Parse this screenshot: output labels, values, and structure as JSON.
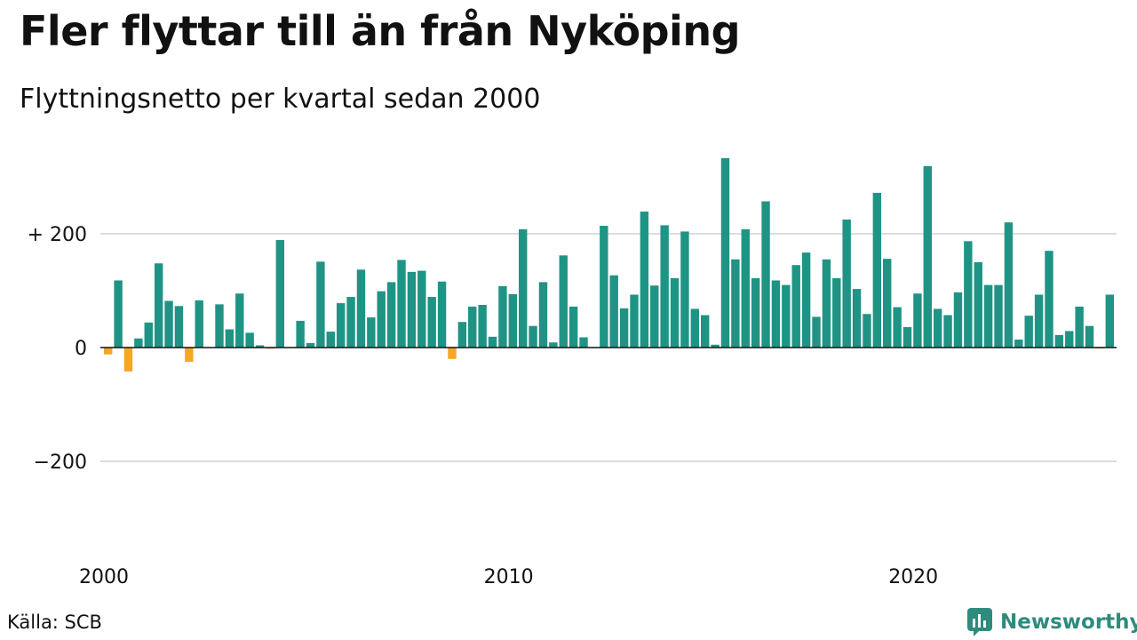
{
  "title": "Fler flyttar till än från Nyköping",
  "subtitle": "Flyttningsnetto per kvartal sedan 2000",
  "source": "Källa: SCB",
  "brand": "Newsworthy",
  "colors": {
    "positive": "#1f9485",
    "negative": "#f5a623",
    "grid": "#dddddd",
    "baseline": "#111111",
    "brand": "#2e8b7d"
  },
  "chart_data": {
    "type": "bar",
    "x_start_year": 2000,
    "periods_per_year": 4,
    "ylim": [
      -300,
      330
    ],
    "y_ticks": [
      {
        "value": 200,
        "label": "+ 200"
      },
      {
        "value": 0,
        "label": "0"
      },
      {
        "value": -200,
        "label": "−200"
      }
    ],
    "x_ticks": [
      {
        "year": 2000,
        "label": "2000"
      },
      {
        "year": 2010,
        "label": "2010"
      },
      {
        "year": 2020,
        "label": "2020"
      }
    ],
    "values": [
      -12,
      118,
      -42,
      16,
      44,
      148,
      82,
      73,
      -25,
      83,
      0,
      76,
      32,
      95,
      26,
      4,
      -2,
      189,
      0,
      47,
      8,
      151,
      28,
      78,
      89,
      137,
      53,
      99,
      115,
      154,
      133,
      135,
      89,
      116,
      -20,
      45,
      72,
      75,
      19,
      108,
      94,
      208,
      38,
      115,
      9,
      162,
      72,
      18,
      0,
      214,
      127,
      69,
      93,
      239,
      109,
      215,
      122,
      204,
      68,
      57,
      5,
      333,
      155,
      208,
      122,
      257,
      118,
      110,
      145,
      167,
      54,
      155,
      122,
      225,
      103,
      59,
      272,
      156,
      71,
      36,
      95,
      319,
      68,
      57,
      97,
      187,
      150,
      110,
      110,
      220,
      14,
      56,
      93,
      170,
      22,
      29,
      72,
      38,
      -1,
      93
    ]
  }
}
